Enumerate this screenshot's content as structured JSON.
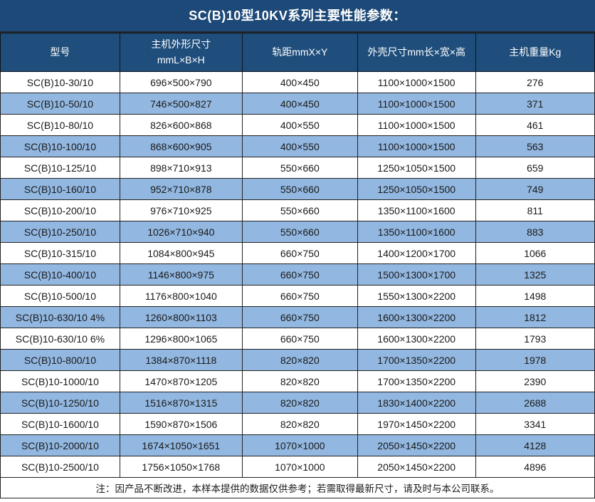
{
  "title": "SC(B)10型10KV系列主要性能参数：",
  "table": {
    "headers": [
      "型号",
      "主机外形尺寸\nmmL×B×H",
      "轨距mmX×Y",
      "外壳尺寸mm长×宽×高",
      "主机重量Kg"
    ],
    "rows": [
      [
        "SC(B)10-30/10",
        "696×500×790",
        "400×450",
        "1100×1000×1500",
        "276"
      ],
      [
        "SC(B)10-50/10",
        "746×500×827",
        "400×450",
        "1100×1000×1500",
        "371"
      ],
      [
        "SC(B)10-80/10",
        "826×600×868",
        "400×550",
        "1100×1000×1500",
        "461"
      ],
      [
        "SC(B)10-100/10",
        "868×600×905",
        "400×550",
        "1100×1000×1500",
        "563"
      ],
      [
        "SC(B)10-125/10",
        "898×710×913",
        "550×660",
        "1250×1050×1500",
        "659"
      ],
      [
        "SC(B)10-160/10",
        "952×710×878",
        "550×660",
        "1250×1050×1500",
        "749"
      ],
      [
        "SC(B)10-200/10",
        "976×710×925",
        "550×660",
        "1350×1100×1600",
        "811"
      ],
      [
        "SC(B)10-250/10",
        "1026×710×940",
        "550×660",
        "1350×1100×1600",
        "883"
      ],
      [
        "SC(B)10-315/10",
        "1084×800×945",
        "660×750",
        "1400×1200×1700",
        "1066"
      ],
      [
        "SC(B)10-400/10",
        "1146×800×975",
        "660×750",
        "1500×1300×1700",
        "1325"
      ],
      [
        "SC(B)10-500/10",
        "1176×800×1040",
        "660×750",
        "1550×1300×2200",
        "1498"
      ],
      [
        "SC(B)10-630/10 4%",
        "1260×800×1103",
        "660×750",
        "1600×1300×2200",
        "1812"
      ],
      [
        "SC(B)10-630/10 6%",
        "1296×800×1065",
        "660×750",
        "1600×1300×2200",
        "1793"
      ],
      [
        "SC(B)10-800/10",
        "1384×870×1118",
        "820×820",
        "1700×1350×2200",
        "1978"
      ],
      [
        "SC(B)10-1000/10",
        "1470×870×1205",
        "820×820",
        "1700×1350×2200",
        "2390"
      ],
      [
        "SC(B)10-1250/10",
        "1516×870×1315",
        "820×820",
        "1830×1400×2200",
        "2688"
      ],
      [
        "SC(B)10-1600/10",
        "1590×870×1506",
        "820×820",
        "1970×1450×2200",
        "3341"
      ],
      [
        "SC(B)10-2000/10",
        "1674×1050×1651",
        "1070×1000",
        "2050×1450×2200",
        "4128"
      ],
      [
        "SC(B)10-2500/10",
        "1756×1050×1768",
        "1070×1000",
        "2050×1450×2200",
        "4896"
      ]
    ],
    "note": "注：因产品不断改进，本样本提供的数据仅供参考；若需取得最新尺寸，请及时与本公司联系。"
  },
  "colors": {
    "title_bg": "#1c4977",
    "header_bg": "#1f4e7c",
    "row_bg": "#ffffff",
    "row_alt_bg": "#92b7e0",
    "header_text": "#ffffff",
    "body_text": "#1a1a1a",
    "border": "#222222"
  }
}
